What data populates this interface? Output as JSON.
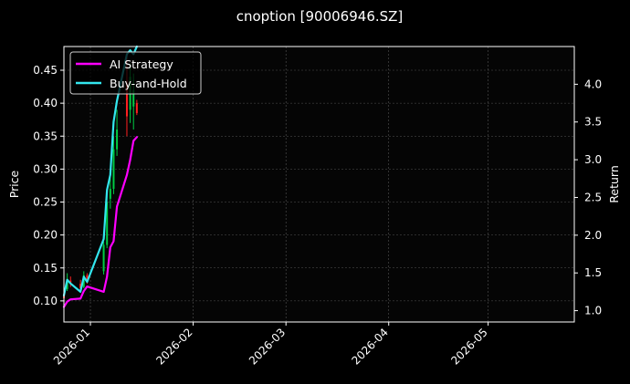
{
  "chart_data": {
    "type": "line",
    "title": "cnoption [90006946.SZ]",
    "xlabel": "",
    "ylabel": "Price",
    "ylabel_right": "Return",
    "x_tick_labels": [
      "2026-01",
      "2026-02",
      "2026-03",
      "2026-04",
      "2026-05"
    ],
    "xlim": [
      "2025-12-24",
      "2026-05-27"
    ],
    "ylim": [
      0.068,
      0.486
    ],
    "ylim_right": [
      0.85,
      4.5
    ],
    "y_ticks": [
      0.1,
      0.15,
      0.2,
      0.25,
      0.3,
      0.35,
      0.4,
      0.45
    ],
    "y_tick_labels": [
      "0.10",
      "0.15",
      "0.20",
      "0.25",
      "0.30",
      "0.35",
      "0.40",
      "0.45"
    ],
    "y_right_ticks": [
      1.0,
      1.5,
      2.0,
      2.5,
      3.0,
      3.5,
      4.0
    ],
    "y_right_tick_labels": [
      "1.0",
      "1.5",
      "2.0",
      "2.5",
      "3.0",
      "3.5",
      "4.0"
    ],
    "grid": true,
    "legend_position": "top-left",
    "colors": {
      "background": "#000000",
      "plot_background": "#050505",
      "ai_strategy": "#ff00ff",
      "buy_and_hold": "#33e6ee",
      "candle_up": "#00cc44",
      "candle_down": "#ff2020",
      "grid": "#555555"
    },
    "series": [
      {
        "name": "AI Strategy",
        "axis": "right",
        "x": [
          "2025-12-24",
          "2025-12-25",
          "2025-12-26",
          "2025-12-29",
          "2025-12-30",
          "2025-12-31",
          "2026-01-05",
          "2026-01-06",
          "2026-01-07",
          "2026-01-08",
          "2026-01-09",
          "2026-01-12",
          "2026-01-13",
          "2026-01-14",
          "2026-01-15"
        ],
        "values": [
          1.05,
          1.12,
          1.15,
          1.16,
          1.26,
          1.32,
          1.25,
          1.45,
          1.84,
          1.92,
          2.38,
          2.8,
          3.0,
          3.25,
          3.3
        ]
      },
      {
        "name": "Buy-and-Hold",
        "axis": "right",
        "x": [
          "2025-12-24",
          "2025-12-25",
          "2025-12-26",
          "2025-12-29",
          "2025-12-30",
          "2025-12-31",
          "2026-01-05",
          "2026-01-06",
          "2026-01-07",
          "2026-01-08",
          "2026-01-09",
          "2026-01-12",
          "2026-01-13",
          "2026-01-14",
          "2026-01-15"
        ],
        "values": [
          1.2,
          1.41,
          1.36,
          1.25,
          1.45,
          1.38,
          1.95,
          2.6,
          2.8,
          3.5,
          3.78,
          4.4,
          4.45,
          4.4,
          4.5
        ]
      }
    ],
    "candles": [
      {
        "date": "2025-12-24",
        "open": 0.11,
        "high": 0.118,
        "low": 0.098,
        "close": 0.104
      },
      {
        "date": "2025-12-25",
        "open": 0.118,
        "high": 0.142,
        "low": 0.115,
        "close": 0.133
      },
      {
        "date": "2025-12-26",
        "open": 0.131,
        "high": 0.137,
        "low": 0.121,
        "close": 0.128
      },
      {
        "date": "2025-12-29",
        "open": 0.126,
        "high": 0.132,
        "low": 0.115,
        "close": 0.119
      },
      {
        "date": "2025-12-30",
        "open": 0.121,
        "high": 0.145,
        "low": 0.119,
        "close": 0.139
      },
      {
        "date": "2025-12-31",
        "open": 0.139,
        "high": 0.142,
        "low": 0.126,
        "close": 0.131
      },
      {
        "date": "2026-01-05",
        "open": 0.145,
        "high": 0.19,
        "low": 0.14,
        "close": 0.185
      },
      {
        "date": "2026-01-06",
        "open": 0.185,
        "high": 0.26,
        "low": 0.18,
        "close": 0.25
      },
      {
        "date": "2026-01-07",
        "open": 0.255,
        "high": 0.29,
        "low": 0.24,
        "close": 0.27
      },
      {
        "date": "2026-01-08",
        "open": 0.27,
        "high": 0.35,
        "low": 0.262,
        "close": 0.33
      },
      {
        "date": "2026-01-09",
        "open": 0.33,
        "high": 0.39,
        "low": 0.32,
        "close": 0.36
      },
      {
        "date": "2026-01-12",
        "open": 0.43,
        "high": 0.47,
        "low": 0.35,
        "close": 0.38
      },
      {
        "date": "2026-01-13",
        "open": 0.39,
        "high": 0.46,
        "low": 0.37,
        "close": 0.44
      },
      {
        "date": "2026-01-14",
        "open": 0.395,
        "high": 0.445,
        "low": 0.36,
        "close": 0.42
      },
      {
        "date": "2026-01-15",
        "open": 0.4,
        "high": 0.405,
        "low": 0.382,
        "close": 0.385
      }
    ]
  }
}
